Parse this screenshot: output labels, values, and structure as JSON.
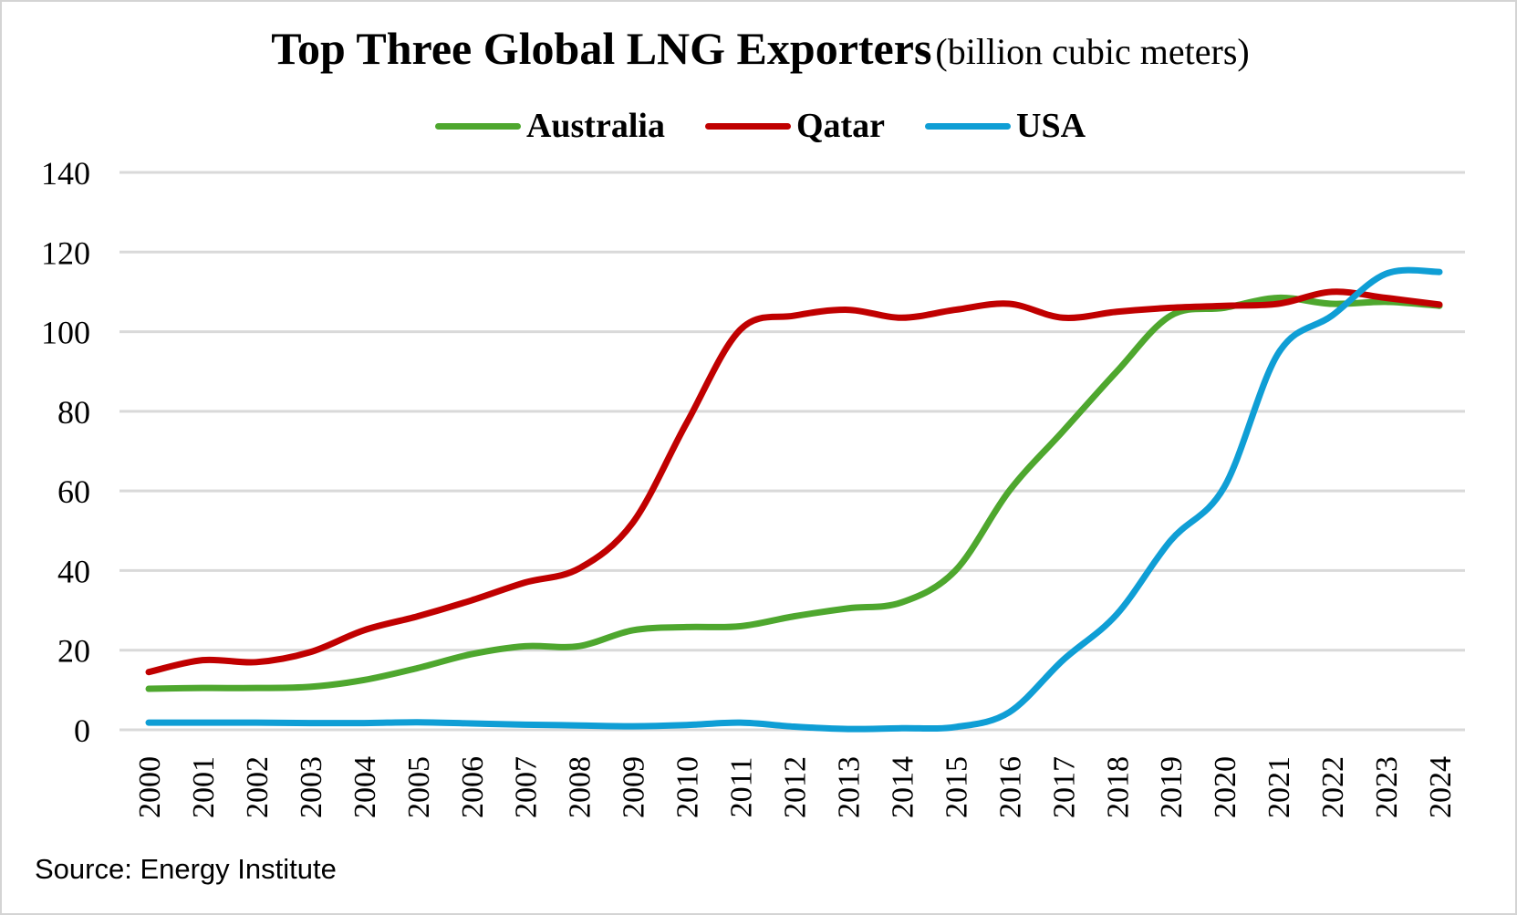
{
  "title": "Top Three Global LNG Exporters",
  "subtitle": "(billion cubic meters)",
  "source": "Source: Energy Institute",
  "chart_data": {
    "type": "line",
    "title": "Top Three Global LNG Exporters",
    "subtitle": "(billion cubic meters)",
    "xlabel": "",
    "ylabel": "",
    "ylim": [
      0,
      140
    ],
    "yticks": [
      0,
      20,
      40,
      60,
      80,
      100,
      120,
      140
    ],
    "grid": true,
    "legend": "top",
    "smooth": true,
    "x": [
      "2000",
      "2001",
      "2002",
      "2003",
      "2004",
      "2005",
      "2006",
      "2007",
      "2008",
      "2009",
      "2010",
      "2011",
      "2012",
      "2013",
      "2014",
      "2015",
      "2016",
      "2017",
      "2018",
      "2019",
      "2020",
      "2021",
      "2022",
      "2023",
      "2024"
    ],
    "series": [
      {
        "name": "Australia",
        "color": "#4ea72e",
        "values": [
          10.3,
          10.5,
          10.5,
          10.8,
          12.5,
          15.5,
          19,
          21,
          21,
          25,
          25.8,
          26,
          28.5,
          30.5,
          32,
          40,
          60,
          75,
          90,
          104,
          106,
          108.5,
          107,
          107.5,
          106.5
        ]
      },
      {
        "name": "Qatar",
        "color": "#c00000",
        "values": [
          14.5,
          17.5,
          17,
          19.5,
          25,
          28.5,
          32.5,
          37,
          40.5,
          52,
          77,
          100.5,
          104,
          105.5,
          103.5,
          105.5,
          107,
          103.5,
          105,
          106,
          106.5,
          107,
          110,
          108.5,
          106.8
        ]
      },
      {
        "name": "USA",
        "color": "#0f9ed5",
        "values": [
          1.8,
          1.8,
          1.8,
          1.7,
          1.7,
          1.9,
          1.6,
          1.3,
          1.1,
          0.9,
          1.2,
          1.8,
          0.8,
          0.2,
          0.4,
          0.7,
          4.4,
          17.5,
          29,
          47.5,
          61,
          94.5,
          104,
          114.5,
          115
        ]
      }
    ]
  }
}
